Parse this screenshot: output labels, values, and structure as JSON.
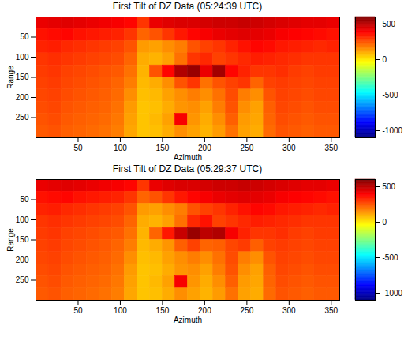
{
  "chart_data": [
    {
      "type": "heatmap",
      "title": "First Tilt of DZ Data (05:24:39 UTC)",
      "x_label": "Azimuth",
      "y_label": "Range",
      "xlim": [
        0,
        360
      ],
      "xticks": [
        50,
        100,
        150,
        200,
        250,
        300,
        350
      ],
      "ylim": [
        0,
        300
      ],
      "yticks": [
        50,
        100,
        150,
        200,
        250
      ],
      "color": "jet",
      "azimuth_bins": [
        0,
        15,
        30,
        45,
        60,
        75,
        90,
        105,
        120,
        135,
        150,
        165,
        180,
        195,
        210,
        225,
        240,
        255,
        270,
        285,
        300,
        315,
        330,
        345,
        360
      ],
      "range_bins": [
        0,
        30,
        60,
        90,
        120,
        150,
        180,
        210,
        240,
        270,
        300
      ],
      "cells": [
        [
          420,
          430,
          440,
          430,
          420,
          410,
          400,
          380,
          300,
          420,
          440,
          450,
          450,
          460,
          470,
          470,
          480,
          470,
          460,
          450,
          440,
          430,
          430,
          420
        ],
        [
          360,
          370,
          380,
          360,
          350,
          340,
          330,
          300,
          220,
          250,
          300,
          350,
          380,
          400,
          420,
          430,
          440,
          430,
          420,
          400,
          390,
          380,
          370,
          360
        ],
        [
          330,
          340,
          320,
          310,
          300,
          290,
          280,
          250,
          130,
          120,
          150,
          180,
          250,
          280,
          300,
          330,
          360,
          380,
          370,
          350,
          340,
          330,
          320,
          330
        ],
        [
          300,
          310,
          300,
          290,
          280,
          270,
          260,
          220,
          100,
          90,
          120,
          200,
          300,
          320,
          280,
          300,
          320,
          340,
          330,
          320,
          310,
          300,
          300,
          300
        ],
        [
          290,
          300,
          280,
          270,
          260,
          250,
          240,
          200,
          90,
          250,
          380,
          520,
          560,
          420,
          540,
          380,
          330,
          300,
          300,
          310,
          290,
          280,
          290,
          290
        ],
        [
          280,
          290,
          270,
          260,
          250,
          240,
          220,
          180,
          80,
          100,
          150,
          250,
          300,
          200,
          250,
          280,
          300,
          220,
          280,
          290,
          280,
          270,
          280,
          280
        ],
        [
          270,
          280,
          260,
          250,
          240,
          230,
          210,
          150,
          70,
          80,
          120,
          150,
          180,
          150,
          200,
          260,
          180,
          150,
          250,
          280,
          270,
          260,
          270,
          270
        ],
        [
          260,
          270,
          250,
          240,
          230,
          220,
          200,
          130,
          60,
          70,
          100,
          140,
          150,
          120,
          180,
          250,
          150,
          120,
          230,
          270,
          260,
          250,
          260,
          260
        ],
        [
          250,
          260,
          240,
          230,
          220,
          210,
          190,
          120,
          60,
          80,
          120,
          400,
          140,
          100,
          150,
          230,
          130,
          110,
          220,
          260,
          250,
          240,
          250,
          250
        ],
        [
          240,
          250,
          230,
          220,
          210,
          200,
          180,
          110,
          60,
          70,
          100,
          150,
          120,
          90,
          130,
          200,
          120,
          100,
          210,
          250,
          240,
          230,
          240,
          240
        ]
      ],
      "colorbar": {
        "range": [
          -1100,
          600
        ],
        "ticks": [
          -1000,
          -500,
          0,
          500
        ]
      }
    },
    {
      "type": "heatmap",
      "title": "First Tilt of DZ Data (05:29:37 UTC)",
      "x_label": "Azimuth",
      "y_label": "Range",
      "xlim": [
        0,
        360
      ],
      "xticks": [
        50,
        100,
        150,
        200,
        250,
        300,
        350
      ],
      "ylim": [
        0,
        300
      ],
      "yticks": [
        50,
        100,
        150,
        200,
        250
      ],
      "color": "jet",
      "azimuth_bins": [
        0,
        15,
        30,
        45,
        60,
        75,
        90,
        105,
        120,
        135,
        150,
        165,
        180,
        195,
        210,
        225,
        240,
        255,
        270,
        285,
        300,
        315,
        330,
        345,
        360
      ],
      "range_bins": [
        0,
        30,
        60,
        90,
        120,
        150,
        180,
        210,
        240,
        270,
        300
      ],
      "cells": [
        [
          420,
          430,
          440,
          430,
          420,
          410,
          400,
          380,
          300,
          420,
          440,
          450,
          450,
          460,
          470,
          470,
          480,
          470,
          460,
          450,
          440,
          430,
          430,
          420
        ],
        [
          360,
          370,
          380,
          360,
          350,
          340,
          330,
          300,
          220,
          250,
          300,
          350,
          380,
          400,
          420,
          430,
          440,
          430,
          420,
          400,
          390,
          380,
          370,
          360
        ],
        [
          330,
          340,
          320,
          310,
          300,
          290,
          280,
          250,
          130,
          120,
          150,
          180,
          250,
          280,
          300,
          330,
          360,
          380,
          370,
          350,
          340,
          330,
          320,
          330
        ],
        [
          300,
          310,
          300,
          290,
          280,
          270,
          260,
          220,
          100,
          90,
          120,
          200,
          320,
          360,
          280,
          300,
          320,
          340,
          330,
          320,
          310,
          300,
          300,
          300
        ],
        [
          290,
          300,
          280,
          270,
          260,
          250,
          240,
          200,
          90,
          220,
          350,
          480,
          560,
          500,
          520,
          400,
          330,
          300,
          300,
          310,
          290,
          280,
          290,
          290
        ],
        [
          280,
          290,
          270,
          260,
          250,
          240,
          220,
          180,
          80,
          100,
          140,
          230,
          280,
          220,
          230,
          270,
          290,
          230,
          280,
          290,
          280,
          270,
          280,
          280
        ],
        [
          270,
          280,
          260,
          250,
          240,
          230,
          210,
          150,
          70,
          80,
          120,
          150,
          180,
          150,
          200,
          260,
          180,
          150,
          250,
          280,
          270,
          260,
          270,
          270
        ],
        [
          260,
          270,
          250,
          240,
          230,
          220,
          200,
          130,
          60,
          70,
          100,
          140,
          150,
          120,
          180,
          250,
          150,
          120,
          230,
          270,
          260,
          250,
          260,
          260
        ],
        [
          250,
          260,
          240,
          230,
          220,
          210,
          190,
          120,
          60,
          80,
          120,
          400,
          140,
          100,
          150,
          230,
          130,
          110,
          220,
          260,
          250,
          240,
          250,
          250
        ],
        [
          240,
          250,
          230,
          220,
          210,
          200,
          180,
          110,
          60,
          70,
          100,
          150,
          120,
          90,
          130,
          200,
          120,
          100,
          210,
          250,
          240,
          230,
          240,
          240
        ]
      ],
      "colorbar": {
        "range": [
          -1100,
          600
        ],
        "ticks": [
          -1000,
          -500,
          0,
          500
        ]
      }
    }
  ]
}
